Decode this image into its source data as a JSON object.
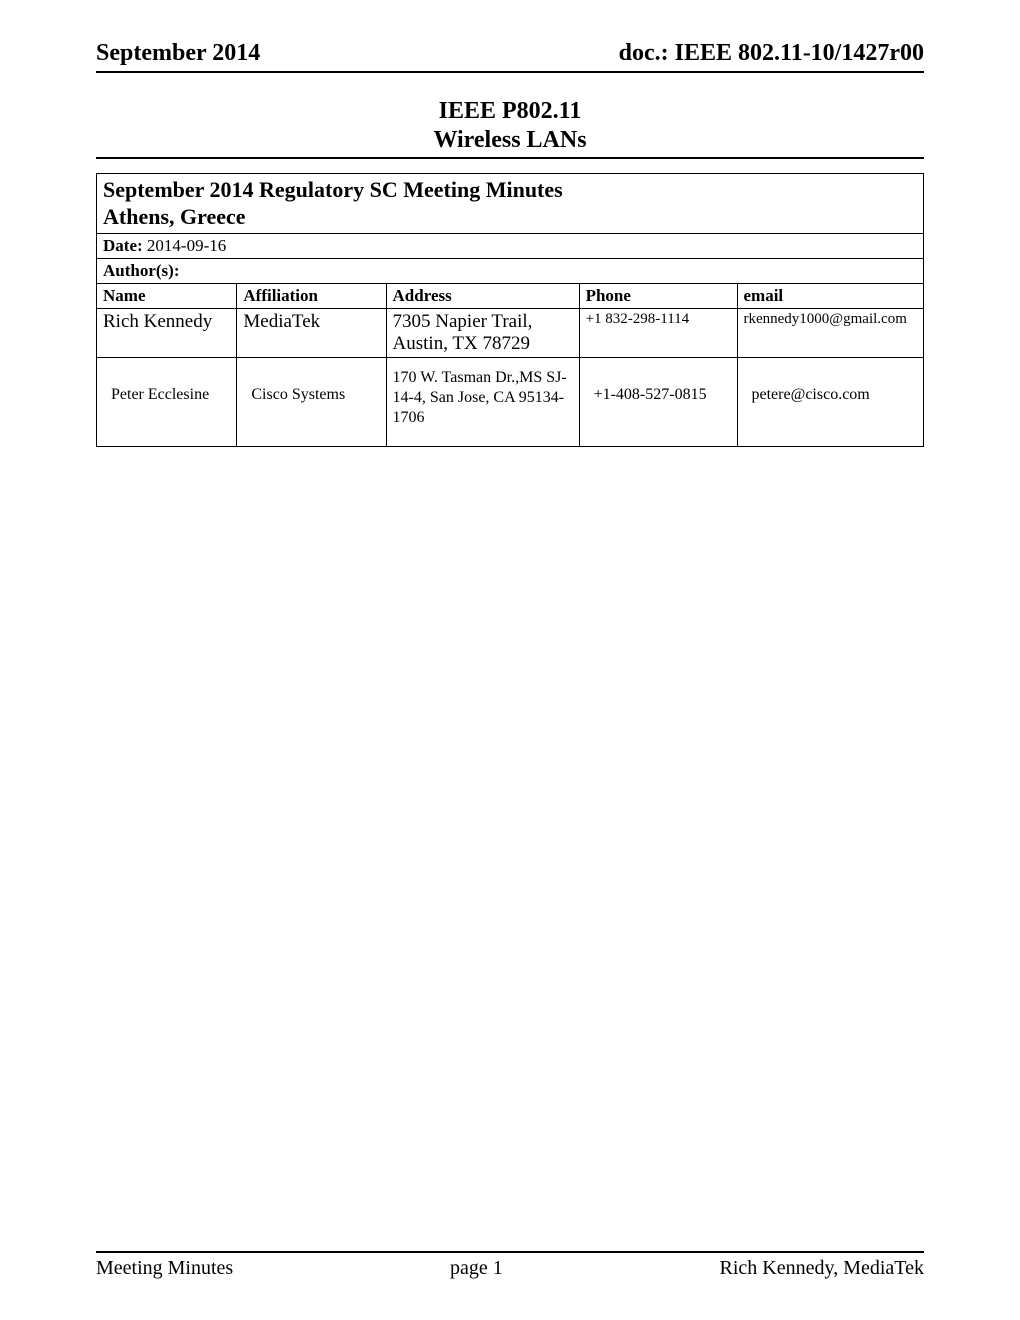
{
  "header": {
    "left": "September 2014",
    "right": "doc.: IEEE 802.11-10/1427r00"
  },
  "heading": {
    "line1": "IEEE P802.11",
    "line2": "Wireless LANs"
  },
  "title": {
    "line1": "September 2014 Regulatory SC Meeting Minutes",
    "line2": "Athens, Greece"
  },
  "date": {
    "label": "Date:",
    "value": "2014-09-16"
  },
  "authors": {
    "label": "Author(s):",
    "columns": {
      "name": "Name",
      "affiliation": "Affiliation",
      "address": "Address",
      "phone": "Phone",
      "email": "email"
    },
    "rows": [
      {
        "name": "Rich Kennedy",
        "affiliation": "MediaTek",
        "address": "7305 Napier Trail, Austin, TX 78729",
        "phone": "+1 832-298-1114",
        "email": "rkennedy1000@gmail.com"
      },
      {
        "name": "Peter Ecclesine",
        "affiliation": "Cisco Systems",
        "address": "170 W. Tasman Dr.,MS SJ-14-4, San Jose, CA 95134-1706",
        "phone": "+1-408-527-0815",
        "email": "petere@cisco.com"
      }
    ]
  },
  "footer": {
    "left": "Meeting Minutes",
    "center": "page 1",
    "right": "Rich Kennedy, MediaTek"
  }
}
